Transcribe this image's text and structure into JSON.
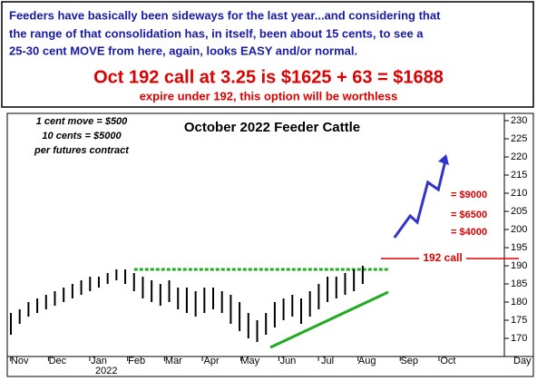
{
  "header": {
    "lines": [
      "Feeders have basically been sideways for the last year...and considering that",
      "the range of that consolidation has, in itself, been about 15 cents, to see a",
      "25-30 cent MOVE from here, again, looks EASY and/or normal."
    ],
    "headline": "Oct 192 call at 3.25 is $1625 + 63 = $1688",
    "subline": "expire under 192, this option will be worthless"
  },
  "chart_data": {
    "type": "ohlc",
    "title": "October 2022 Feeder Cattle",
    "notes": [
      "1 cent move = $500",
      "10 cents = $5000",
      "per futures contract"
    ],
    "profit_labels": [
      "= $9000",
      "= $6500",
      "= $4000"
    ],
    "x_label": "Day",
    "year_label": "2022",
    "x": [
      0,
      1,
      2,
      3,
      4,
      5,
      6,
      7,
      8,
      9,
      10,
      11,
      12,
      13,
      14,
      15,
      16,
      17,
      18,
      19,
      20,
      21,
      22,
      23,
      24,
      25,
      26,
      27,
      28,
      29,
      30,
      31,
      32,
      33,
      34,
      35,
      36,
      37,
      38,
      39,
      40
    ],
    "high": [
      177,
      178,
      180,
      181,
      182,
      183,
      184,
      185,
      186,
      187,
      187,
      188,
      189,
      189,
      188,
      187,
      186,
      185,
      186,
      184,
      184,
      183,
      184,
      184,
      183,
      182,
      180,
      177,
      175,
      177,
      180,
      181,
      182,
      181,
      183,
      185,
      187,
      187,
      188,
      189,
      190
    ],
    "low": [
      171,
      174,
      176,
      177,
      178,
      179,
      180,
      181,
      182,
      183,
      184,
      185,
      186,
      185,
      183,
      181,
      180,
      179,
      180,
      178,
      177,
      176,
      177,
      178,
      177,
      174,
      172,
      170,
      169,
      171,
      173,
      175,
      176,
      174,
      176,
      178,
      180,
      181,
      182,
      183,
      185
    ],
    "color": "#000000",
    "projection": {
      "x": [
        43.6,
        45.4,
        46.2,
        47.4,
        48.6,
        49.5
      ],
      "values": [
        197.75,
        203.75,
        202,
        213,
        211,
        220
      ],
      "color": "#3333cc"
    },
    "trendlines": [
      {
        "x": [
          14,
          43.1
        ],
        "values": [
          189,
          189
        ],
        "color": "#22aa22",
        "style": "dotted"
      },
      {
        "x": [
          29.5,
          42.9
        ],
        "values": [
          167.5,
          182.75
        ],
        "color": "#22aa22",
        "style": "solid"
      }
    ],
    "call_level": {
      "value": 192,
      "label": "192 call",
      "color": "#dd0000"
    },
    "xlim": [
      0,
      56
    ],
    "ylim": [
      165,
      232
    ],
    "yticks": [
      170,
      175,
      180,
      185,
      190,
      195,
      200,
      205,
      210,
      215,
      220,
      225,
      230
    ],
    "xticks": [
      {
        "value": 1,
        "label": "Nov"
      },
      {
        "value": 5.3,
        "label": "Dec"
      },
      {
        "value": 10,
        "label": "Jan"
      },
      {
        "value": 14.3,
        "label": "Feb"
      },
      {
        "value": 18.5,
        "label": "Mar"
      },
      {
        "value": 22.8,
        "label": "Apr"
      },
      {
        "value": 27.2,
        "label": "May"
      },
      {
        "value": 31.5,
        "label": "Jun"
      },
      {
        "value": 36,
        "label": "Jul"
      },
      {
        "value": 40.5,
        "label": "Aug"
      },
      {
        "value": 45.3,
        "label": "Sep"
      },
      {
        "value": 49.7,
        "label": "Oct"
      }
    ]
  }
}
